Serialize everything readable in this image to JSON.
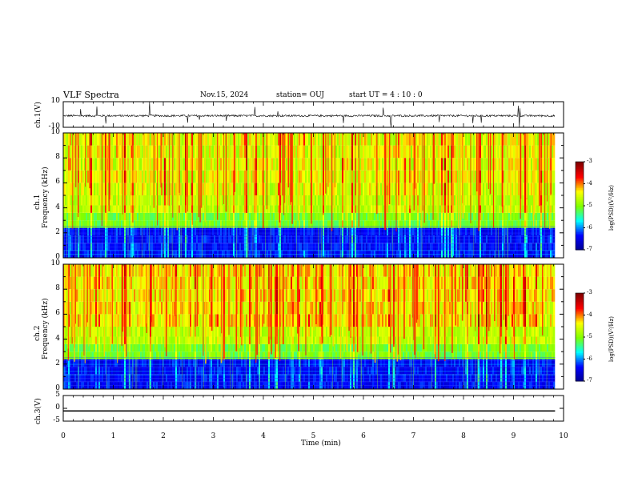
{
  "header": {
    "title": "VLF Spectra",
    "date": "Nov.15, 2024",
    "station": "station= OUJ",
    "start_ut": "start  UT =   4 : 10 : 0"
  },
  "chart_data": [
    {
      "type": "line",
      "panel": "ch1-waveform",
      "ylabel": "ch.1(V)",
      "ylim": [
        -10,
        10
      ],
      "ytick_labels": [
        "10",
        "-10"
      ],
      "series": [
        {
          "values_note": "",
          "baseline": -1.0,
          "amplitude": 0.8
        }
      ]
    },
    {
      "type": "heatmap",
      "panel": "ch1-spectrogram",
      "ylabel": "ch.1\nFrequency (kHz)",
      "ylabel_line1": "ch.1",
      "ylabel_line2": "Frequency (kHz)",
      "ylim": [
        0,
        10
      ],
      "ytick_labels": [
        "0",
        "2",
        "4",
        "6",
        "8",
        "10"
      ],
      "colorbar": {
        "label": "log(PSD)(V²/Hz)",
        "range": [
          -7,
          -3
        ],
        "tick_labels": [
          "-3",
          "-4",
          "-5",
          "-6",
          "-7"
        ]
      }
    },
    {
      "type": "heatmap",
      "panel": "ch2-spectrogram",
      "ylabel_line1": "ch.2",
      "ylabel_line2": "Frequency (kHz)",
      "ylim": [
        0,
        10
      ],
      "ytick_labels": [
        "0",
        "2",
        "4",
        "6",
        "8",
        "10"
      ],
      "colorbar": {
        "label": "log(PSD)(V²/Hz)",
        "range": [
          -7,
          -3
        ],
        "tick_labels": [
          "-3",
          "-4",
          "-5",
          "-6",
          "-7"
        ]
      }
    },
    {
      "type": "line",
      "panel": "ch3-waveform",
      "ylabel": "ch.3(V)",
      "ylim": [
        -5,
        5
      ],
      "ytick_labels": [
        "5",
        "0",
        "-5"
      ],
      "series": [
        {
          "constant": -1.0
        }
      ]
    }
  ],
  "x_axis": {
    "xlabel": "Time  (min)",
    "xlim": [
      0,
      10
    ],
    "data_end": 9.83,
    "tick_labels": [
      "0",
      "1",
      "2",
      "3",
      "4",
      "5",
      "6",
      "7",
      "8",
      "9",
      "10"
    ]
  },
  "colors": {
    "jet": [
      "#00008f",
      "#0000ff",
      "#00ffff",
      "#7fff00",
      "#ffff00",
      "#ff0000",
      "#7f0000"
    ]
  }
}
